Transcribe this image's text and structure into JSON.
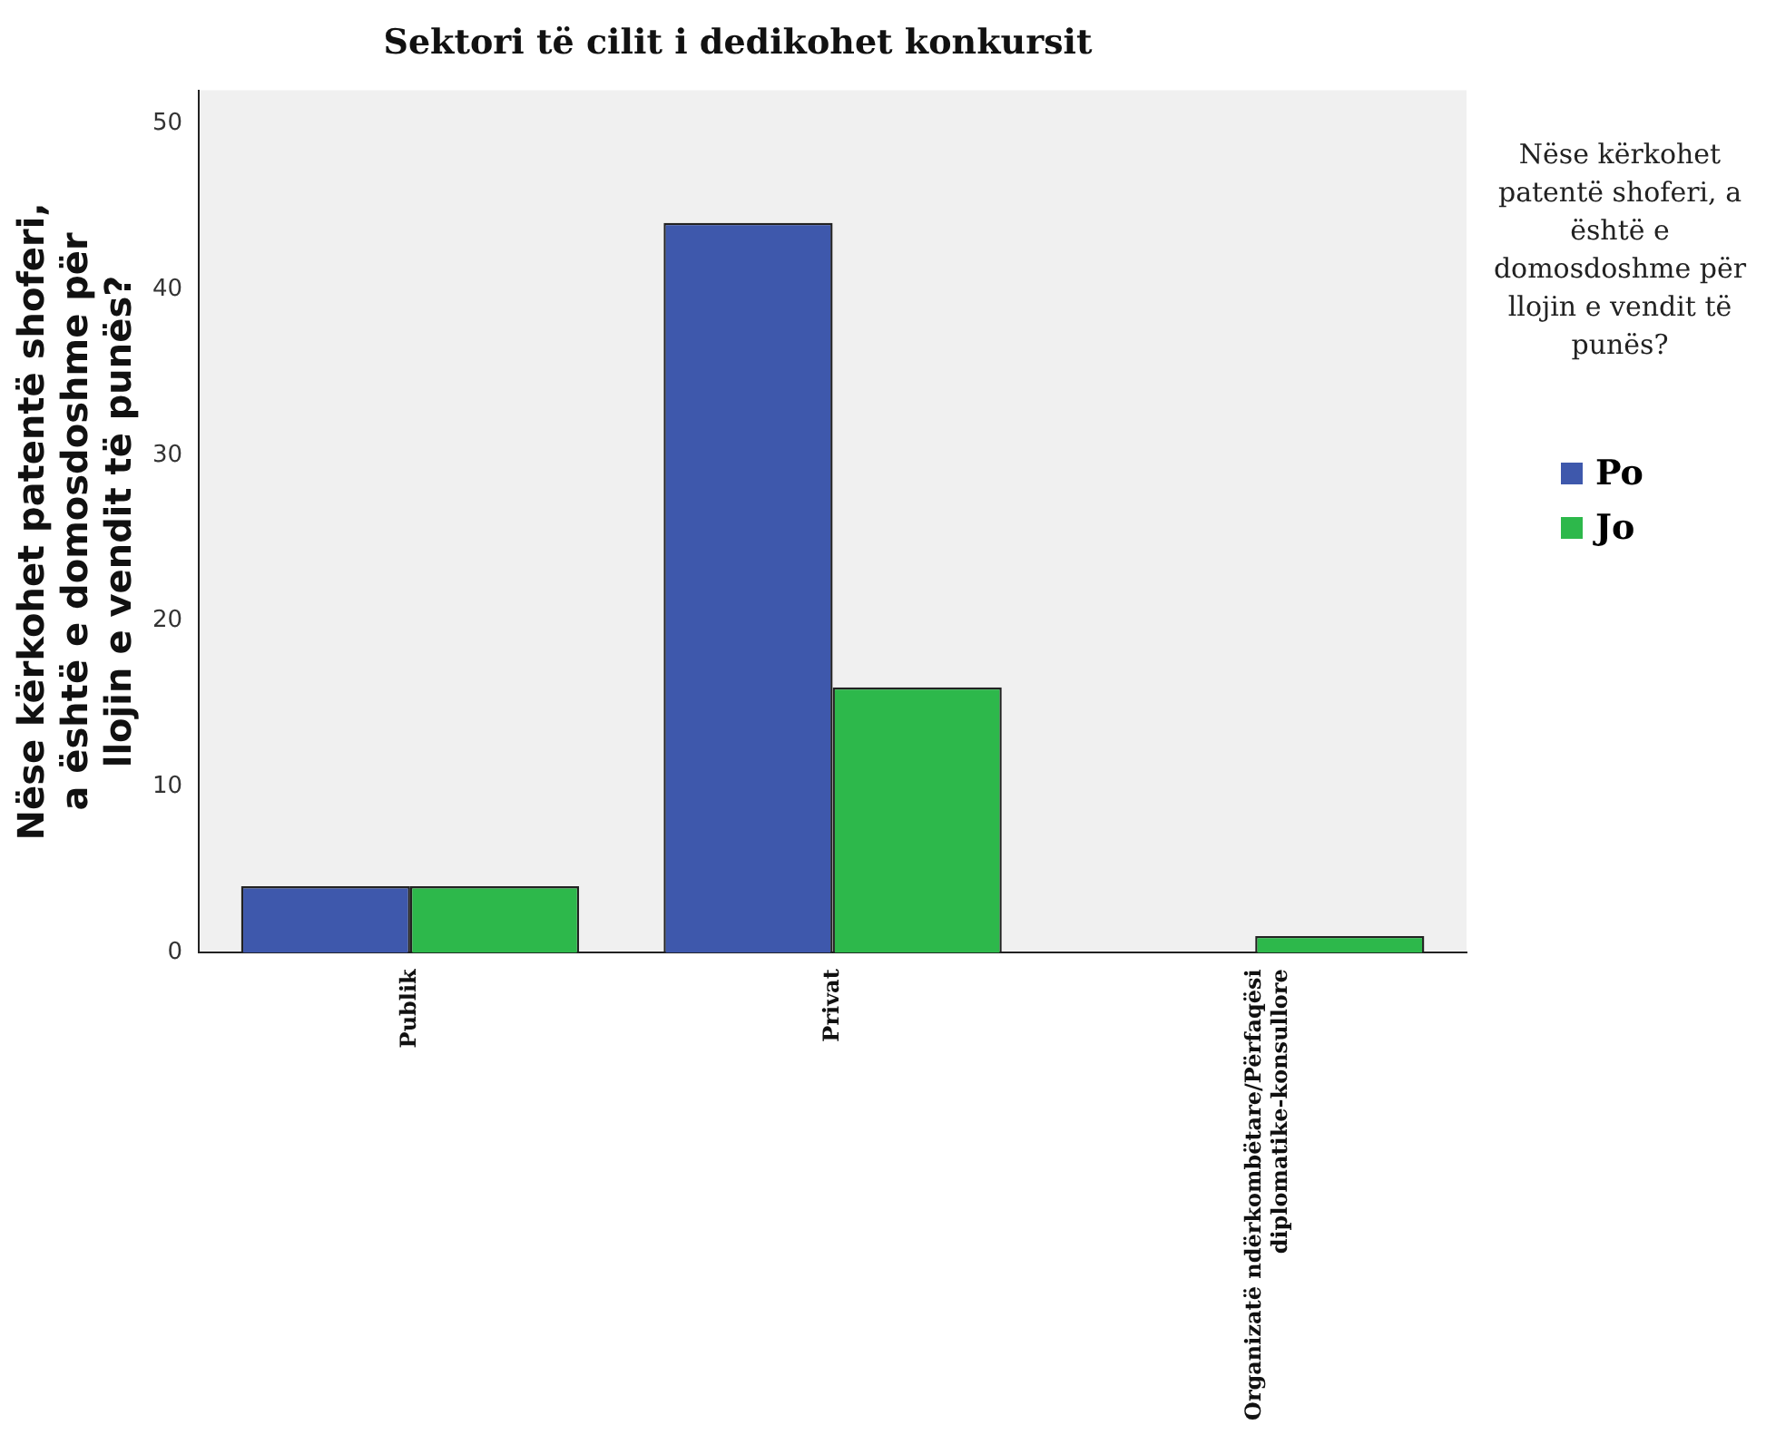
{
  "chart_data": {
    "type": "bar",
    "title": "Sektori të cilit i dedikohet konkursit",
    "ylabel": "Nëse kërkohet patentë shoferi, a është e domosdoshme për llojin e vendit të punës?",
    "legend_title": "Nëse kërkohet patentë shoferi, a është e domosdoshme për llojin e vendit të punës?",
    "categories": [
      "Publik",
      "Privat",
      "Organizatë ndërkombëtare/Përfaqësi diplomatike-konsullore"
    ],
    "series": [
      {
        "name": "Po",
        "color": "#3e58ac",
        "values": [
          4,
          44,
          0
        ]
      },
      {
        "name": "Jo",
        "color": "#2db84b",
        "values": [
          4,
          16,
          1
        ]
      }
    ],
    "ylim": [
      0,
      52
    ],
    "yticks": [
      0,
      10,
      20,
      30,
      40,
      50
    ],
    "grid": false,
    "legend": "right"
  }
}
